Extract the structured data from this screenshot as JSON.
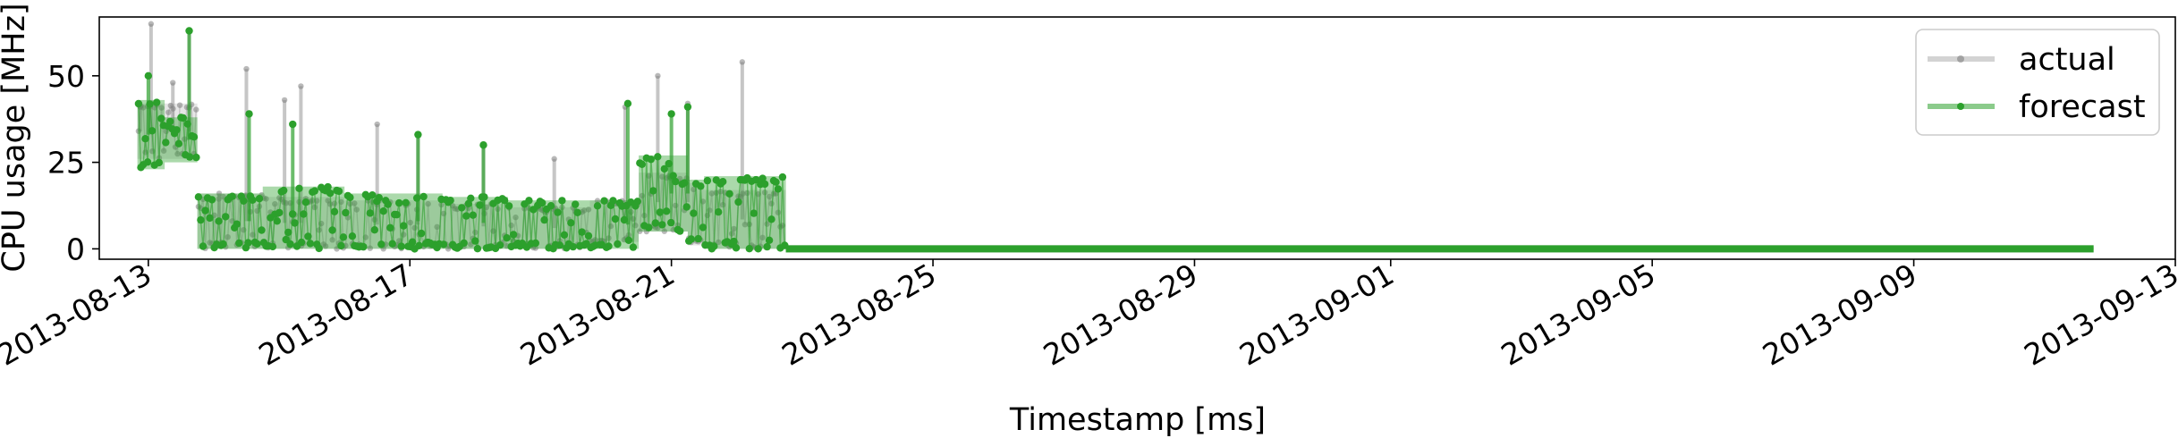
{
  "chart_data": {
    "type": "line",
    "xlabel": "Timestamp [ms]",
    "ylabel": "CPU usage [MHz]",
    "ylim": [
      -3,
      67
    ],
    "y_ticks": [
      0,
      25,
      50
    ],
    "x_range": [
      "2013-08-12T06:00",
      "2013-09-13T00:00"
    ],
    "x_ticks": [
      {
        "date": "2013-08-13",
        "label": "2013-08-13"
      },
      {
        "date": "2013-08-17",
        "label": "2013-08-17"
      },
      {
        "date": "2013-08-21",
        "label": "2013-08-21"
      },
      {
        "date": "2013-08-25",
        "label": "2013-08-25"
      },
      {
        "date": "2013-08-29",
        "label": "2013-08-29"
      },
      {
        "date": "2013-09-01",
        "label": "2013-09-01"
      },
      {
        "date": "2013-09-05",
        "label": "2013-09-05"
      },
      {
        "date": "2013-09-09",
        "label": "2013-09-09"
      },
      {
        "date": "2013-09-13",
        "label": "2013-09-13"
      }
    ],
    "grid": false,
    "legend_position": "top-right",
    "series": [
      {
        "name": "actual",
        "color": "#808080",
        "segments": [
          {
            "start": "2013-08-12T20:00",
            "end": "2013-08-13T12:00",
            "low": 26,
            "high": 42
          },
          {
            "start": "2013-08-13T12:00",
            "end": "2013-08-13T18:00",
            "low": 26,
            "high": 42
          },
          {
            "start": "2013-08-13T18:00",
            "end": "2013-08-14T18:00",
            "low": 0,
            "high": 16
          },
          {
            "start": "2013-08-14T18:00",
            "end": "2013-08-16T00:00",
            "low": 0,
            "high": 15
          },
          {
            "start": "2013-08-16T00:00",
            "end": "2013-08-17T12:00",
            "low": 0,
            "high": 14
          },
          {
            "start": "2013-08-17T12:00",
            "end": "2013-08-18T12:00",
            "low": 0,
            "high": 13
          },
          {
            "start": "2013-08-18T12:00",
            "end": "2013-08-19T18:00",
            "low": 0,
            "high": 12
          },
          {
            "start": "2013-08-19T18:00",
            "end": "2013-08-20T12:00",
            "low": 2,
            "high": 14
          },
          {
            "start": "2013-08-20T12:00",
            "end": "2013-08-21T06:00",
            "low": 5,
            "high": 22
          },
          {
            "start": "2013-08-21T06:00",
            "end": "2013-08-21T12:00",
            "low": 1,
            "high": 19
          },
          {
            "start": "2013-08-21T12:00",
            "end": "2013-08-22T18:00",
            "low": 0,
            "high": 17
          },
          {
            "start": "2013-08-22T18:00",
            "end": "2013-09-11T18:00",
            "low": 0,
            "high": 0.5
          }
        ],
        "spikes": [
          {
            "date": "2013-08-12T21:00",
            "value": 41
          },
          {
            "date": "2013-08-13T01:00",
            "value": 65
          },
          {
            "date": "2013-08-13T09:00",
            "value": 48
          },
          {
            "date": "2013-08-13T15:00",
            "value": 63
          },
          {
            "date": "2013-08-14T02:00",
            "value": 16
          },
          {
            "date": "2013-08-14T12:00",
            "value": 52
          },
          {
            "date": "2013-08-15T02:00",
            "value": 43
          },
          {
            "date": "2013-08-15T08:00",
            "value": 47
          },
          {
            "date": "2013-08-16T12:00",
            "value": 36
          },
          {
            "date": "2013-08-17T03:00",
            "value": 33
          },
          {
            "date": "2013-08-18T03:00",
            "value": 30
          },
          {
            "date": "2013-08-19T05:00",
            "value": 26
          },
          {
            "date": "2013-08-20T07:00",
            "value": 41
          },
          {
            "date": "2013-08-20T19:00",
            "value": 50
          },
          {
            "date": "2013-08-21T06:00",
            "value": 42
          },
          {
            "date": "2013-08-22T02:00",
            "value": 54
          }
        ]
      },
      {
        "name": "forecast",
        "color": "#2ca02c",
        "segments": [
          {
            "start": "2013-08-12T20:00",
            "end": "2013-08-13T06:00",
            "low": 23,
            "high": 43
          },
          {
            "start": "2013-08-13T06:00",
            "end": "2013-08-13T18:00",
            "low": 25,
            "high": 38
          },
          {
            "start": "2013-08-13T18:00",
            "end": "2013-08-14T18:00",
            "low": 0,
            "high": 16
          },
          {
            "start": "2013-08-14T18:00",
            "end": "2013-08-16T00:00",
            "low": 0,
            "high": 18
          },
          {
            "start": "2013-08-16T00:00",
            "end": "2013-08-17T12:00",
            "low": 0,
            "high": 16
          },
          {
            "start": "2013-08-17T12:00",
            "end": "2013-08-18T12:00",
            "low": 0,
            "high": 15
          },
          {
            "start": "2013-08-18T12:00",
            "end": "2013-08-19T18:00",
            "low": 0,
            "high": 14
          },
          {
            "start": "2013-08-19T18:00",
            "end": "2013-08-20T12:00",
            "low": 0,
            "high": 14
          },
          {
            "start": "2013-08-20T12:00",
            "end": "2013-08-21T06:00",
            "low": 5,
            "high": 27
          },
          {
            "start": "2013-08-21T06:00",
            "end": "2013-08-21T12:00",
            "low": 2,
            "high": 20
          },
          {
            "start": "2013-08-21T12:00",
            "end": "2013-08-22T18:00",
            "low": 0,
            "high": 21
          },
          {
            "start": "2013-08-22T18:00",
            "end": "2013-09-11T18:00",
            "low": 0,
            "high": 0.3
          }
        ],
        "spikes": [
          {
            "date": "2013-08-13T00:00",
            "value": 50
          },
          {
            "date": "2013-08-13T15:00",
            "value": 63
          },
          {
            "date": "2013-08-14T13:00",
            "value": 39
          },
          {
            "date": "2013-08-15T05:00",
            "value": 36
          },
          {
            "date": "2013-08-17T03:00",
            "value": 33
          },
          {
            "date": "2013-08-18T03:00",
            "value": 30
          },
          {
            "date": "2013-08-20T08:00",
            "value": 42
          },
          {
            "date": "2013-08-21T00:00",
            "value": 39
          },
          {
            "date": "2013-08-21T06:00",
            "value": 41
          }
        ]
      }
    ]
  }
}
